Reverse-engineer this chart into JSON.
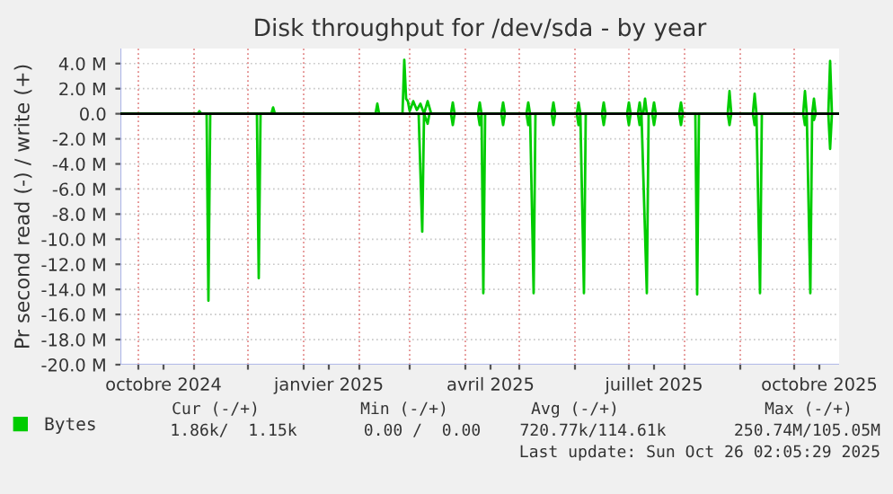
{
  "chart_data": {
    "type": "line",
    "title": "Disk throughput for /dev/sda - by year",
    "ylabel": "Pr second read (-) / write (+)",
    "xlim": [
      "2024-09-21",
      "2025-10-26"
    ],
    "xticks": [
      {
        "value": "2024-10-01",
        "label": null
      },
      {
        "value": "2024-10-15",
        "label": "octobre 2024"
      },
      {
        "value": "2024-11-01",
        "label": null
      },
      {
        "value": "2024-12-01",
        "label": null
      },
      {
        "value": "2025-01-01",
        "label": null
      },
      {
        "value": "2025-01-15",
        "label": "janvier 2025"
      },
      {
        "value": "2025-02-01",
        "label": null
      },
      {
        "value": "2025-03-01",
        "label": null
      },
      {
        "value": "2025-04-01",
        "label": null
      },
      {
        "value": "2025-04-15",
        "label": "avril 2025"
      },
      {
        "value": "2025-05-01",
        "label": null
      },
      {
        "value": "2025-06-01",
        "label": null
      },
      {
        "value": "2025-07-01",
        "label": null
      },
      {
        "value": "2025-07-15",
        "label": "juillet 2025"
      },
      {
        "value": "2025-08-01",
        "label": null
      },
      {
        "value": "2025-09-01",
        "label": null
      },
      {
        "value": "2025-10-01",
        "label": null
      },
      {
        "value": "2025-10-15",
        "label": "octobre 2025"
      }
    ],
    "ylim": [
      -20,
      5.2
    ],
    "yticks": [
      {
        "value": 4,
        "label": "4.0 M"
      },
      {
        "value": 2,
        "label": "2.0 M"
      },
      {
        "value": 0,
        "label": "0.0"
      },
      {
        "value": -2,
        "label": "-2.0 M"
      },
      {
        "value": -4,
        "label": "-4.0 M"
      },
      {
        "value": -6,
        "label": "-6.0 M"
      },
      {
        "value": -8,
        "label": "-8.0 M"
      },
      {
        "value": -10,
        "label": "-10.0 M"
      },
      {
        "value": -12,
        "label": "-12.0 M"
      },
      {
        "value": -14,
        "label": "-14.0 M"
      },
      {
        "value": -16,
        "label": "-16.0 M"
      },
      {
        "value": -18,
        "label": "-18.0 M"
      },
      {
        "value": -20,
        "label": "-20.0 M"
      }
    ],
    "ref_lines": [
      {
        "axis": "y",
        "value": 0,
        "color": "#000000"
      }
    ],
    "grid": true,
    "legend": "bottom",
    "series": [
      {
        "name": "Bytes",
        "color": "#00cc00",
        "x": [
          "2024-09-21",
          "2024-11-03",
          "2024-11-04",
          "2024-11-05",
          "2024-12-14",
          "2024-12-15",
          "2024-12-16",
          "2025-02-10",
          "2025-02-11",
          "2025-02-12",
          "2025-02-25",
          "2025-02-26",
          "2025-02-27",
          "2025-02-28",
          "2025-03-01",
          "2025-03-03",
          "2025-03-05",
          "2025-03-07",
          "2025-03-09",
          "2025-03-11",
          "2025-03-12",
          "2025-03-13",
          "2025-03-24",
          "2025-03-25",
          "2025-03-26",
          "2025-04-08",
          "2025-04-09",
          "2025-04-10",
          "2025-04-21",
          "2025-04-22",
          "2025-04-23",
          "2025-05-05",
          "2025-05-06",
          "2025-05-07",
          "2025-05-19",
          "2025-05-20",
          "2025-05-21",
          "2025-06-02",
          "2025-06-03",
          "2025-06-04",
          "2025-06-16",
          "2025-06-17",
          "2025-06-18",
          "2025-06-30",
          "2025-07-01",
          "2025-07-02",
          "2025-07-06",
          "2025-07-07",
          "2025-07-08",
          "2025-07-09",
          "2025-07-10",
          "2025-07-11",
          "2025-07-14",
          "2025-07-15",
          "2025-07-16",
          "2025-07-29",
          "2025-07-30",
          "2025-07-31",
          "2025-08-25",
          "2025-08-26",
          "2025-08-27",
          "2025-09-08",
          "2025-09-09",
          "2025-09-10",
          "2025-10-06",
          "2025-10-07",
          "2025-10-08",
          "2025-10-11",
          "2025-10-12",
          "2025-10-13",
          "2025-10-20",
          "2025-10-21",
          "2025-10-22",
          "2025-10-26"
        ],
        "values": [
          0,
          0,
          0.2,
          0,
          0,
          0.5,
          0,
          0,
          0.8,
          0,
          0,
          4.3,
          1.2,
          1.0,
          0.2,
          1.0,
          0.3,
          0.8,
          0,
          1.0,
          0.5,
          0,
          0,
          0.9,
          0,
          0,
          0.9,
          0,
          0,
          0.9,
          0,
          0,
          0.9,
          0,
          0,
          0.9,
          0,
          0,
          0.9,
          0,
          0,
          0.9,
          0,
          0,
          0.9,
          0,
          0,
          0.9,
          0,
          0,
          1.2,
          0,
          0,
          0.9,
          0,
          0,
          0.9,
          0,
          0,
          1.8,
          0,
          0,
          1.6,
          0,
          0,
          1.8,
          0,
          0,
          1.2,
          0,
          0,
          4.2,
          0,
          0
        ]
      },
      {
        "color": "#00cc00",
        "x": [
          "2024-09-21",
          "2024-11-08",
          "2024-11-09",
          "2024-11-10",
          "2024-12-06",
          "2024-12-07",
          "2024-12-08",
          "2025-03-06",
          "2025-03-08",
          "2025-03-09",
          "2025-03-11",
          "2025-03-12",
          "2025-03-24",
          "2025-03-25",
          "2025-03-26",
          "2025-04-08",
          "2025-04-09",
          "2025-04-10",
          "2025-04-11",
          "2025-04-12",
          "2025-04-21",
          "2025-04-22",
          "2025-04-23",
          "2025-05-05",
          "2025-05-06",
          "2025-05-07",
          "2025-05-09",
          "2025-05-10",
          "2025-05-19",
          "2025-05-20",
          "2025-05-21",
          "2025-06-02",
          "2025-06-03",
          "2025-06-04",
          "2025-06-06",
          "2025-06-07",
          "2025-06-16",
          "2025-06-17",
          "2025-06-18",
          "2025-06-30",
          "2025-07-01",
          "2025-07-02",
          "2025-07-06",
          "2025-07-07",
          "2025-07-08",
          "2025-07-11",
          "2025-07-12",
          "2025-07-14",
          "2025-07-15",
          "2025-07-16",
          "2025-07-29",
          "2025-07-30",
          "2025-07-31",
          "2025-08-07",
          "2025-08-08",
          "2025-08-09",
          "2025-08-25",
          "2025-08-26",
          "2025-08-27",
          "2025-09-08",
          "2025-09-09",
          "2025-09-10",
          "2025-09-12",
          "2025-09-13",
          "2025-10-06",
          "2025-10-07",
          "2025-10-08",
          "2025-10-10",
          "2025-10-11",
          "2025-10-12",
          "2025-10-13",
          "2025-10-20",
          "2025-10-21",
          "2025-10-22",
          "2025-10-26"
        ],
        "values": [
          0,
          0,
          -14.9,
          0,
          0,
          -13.1,
          0,
          0,
          -9.4,
          0,
          -0.8,
          0,
          0,
          -0.9,
          0,
          0,
          -0.9,
          0,
          -14.3,
          0,
          0,
          -0.9,
          0,
          0,
          -0.9,
          0,
          -14.3,
          0,
          0,
          -0.9,
          0,
          0,
          -0.9,
          0,
          -14.3,
          0,
          0,
          -0.9,
          0,
          0,
          -0.9,
          0,
          0,
          -0.9,
          0,
          -14.3,
          0,
          0,
          -0.9,
          0,
          0,
          -0.9,
          0,
          0,
          -14.4,
          0,
          0,
          -0.9,
          0,
          0,
          -0.9,
          0,
          -14.3,
          0,
          0,
          -0.9,
          0,
          -14.3,
          0,
          -0.5,
          0,
          0,
          -2.8,
          0,
          0
        ]
      }
    ],
    "annotations": [
      "Cur (-/+)",
      "Min (-/+)",
      "Avg (-/+)",
      "Max (-/+)",
      "1.86k/  1.15k",
      "0.00 /  0.00",
      "720.77k/114.61k",
      "250.74M/105.05M",
      "Last update: Sun Oct 26 02:05:29 2025"
    ]
  }
}
